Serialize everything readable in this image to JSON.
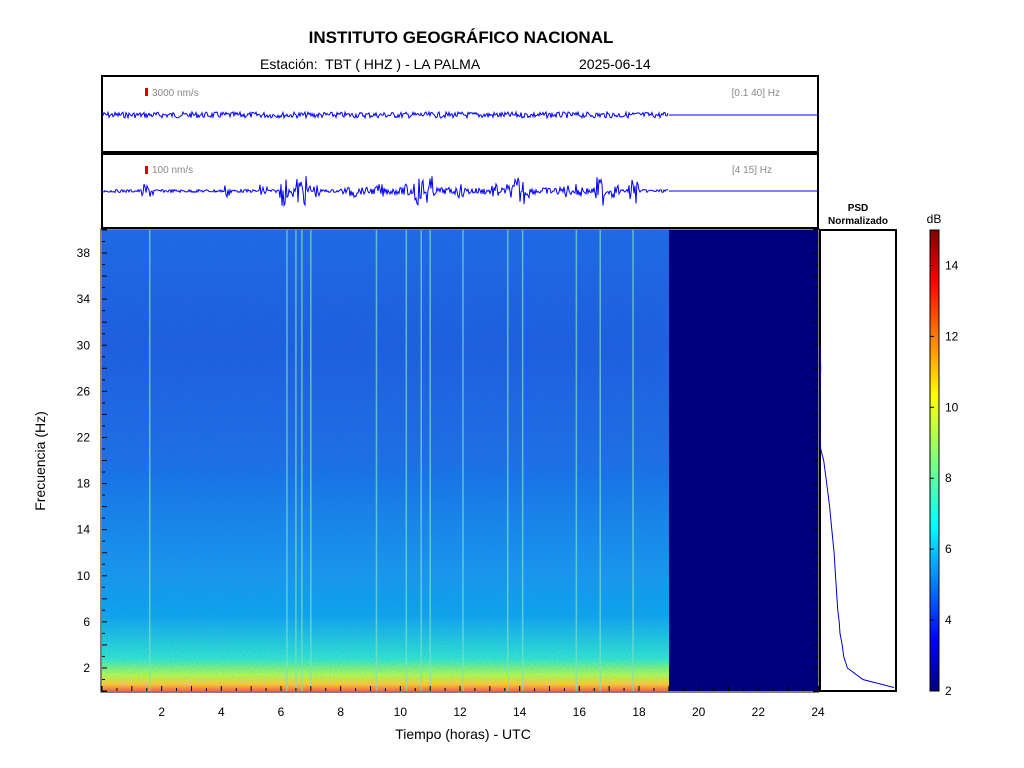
{
  "header": {
    "title": "INSTITUTO GEOGRÁFICO NACIONAL",
    "station_line": "Estación:  TBT ( HHZ ) - LA PALMA",
    "date": "2025-06-14"
  },
  "colors": {
    "trace": "#0000ff",
    "scale_bar": "#dd0000",
    "empty_region": "#00007f"
  },
  "chart_data": [
    {
      "type": "line",
      "panel": "seismogram-broadband",
      "scale_label": "3000 nm/s",
      "band_label": "[0.1 40] Hz",
      "x_range_hours": [
        0,
        24
      ],
      "data_end_hour": 19.0,
      "amplitude_relative": 0.07
    },
    {
      "type": "line",
      "panel": "seismogram-filtered",
      "scale_label": "100 nm/s",
      "band_label": "[4 15] Hz",
      "x_range_hours": [
        0,
        24
      ],
      "data_end_hour": 19.0,
      "events_hours": [
        1.45,
        1.6,
        4.2,
        5.4,
        6.1,
        6.5,
        6.7,
        6.9,
        7.2,
        8.4,
        9.3,
        10.2,
        10.6,
        10.8,
        11.0,
        12.0,
        13.2,
        13.7,
        14.0,
        14.2,
        15.5,
        16.0,
        16.7,
        17.2,
        17.8
      ],
      "large_events_hours": [
        6.1,
        6.7,
        10.6,
        10.9,
        14.0,
        16.7,
        17.8
      ]
    },
    {
      "type": "heatmap",
      "panel": "spectrogram",
      "xlabel": "Tiempo (horas) - UTC",
      "ylabel": "Frecuencia  (Hz)",
      "xlim": [
        0,
        24
      ],
      "ylim": [
        0,
        40
      ],
      "xticks": [
        2,
        4,
        6,
        8,
        10,
        12,
        14,
        16,
        18,
        20,
        22,
        24
      ],
      "yticks": [
        2,
        6,
        10,
        14,
        18,
        22,
        26,
        30,
        34,
        38
      ],
      "data_end_hour": 19.0,
      "vertical_lines_hours": [
        1.6,
        6.2,
        6.5,
        6.7,
        7.0,
        9.2,
        10.2,
        10.7,
        11.0,
        12.1,
        13.6,
        14.1,
        15.9,
        16.7,
        17.8
      ]
    },
    {
      "type": "line",
      "panel": "psd",
      "title": "PSD\nNormalizado",
      "title_lines": [
        "PSD",
        "Normalizado"
      ],
      "ylim": [
        0,
        40
      ],
      "profile": [
        [
          0.3,
          1.0
        ],
        [
          1,
          0.58
        ],
        [
          2,
          0.37
        ],
        [
          3,
          0.32
        ],
        [
          4,
          0.3
        ],
        [
          5,
          0.27
        ],
        [
          6,
          0.26
        ],
        [
          7,
          0.24
        ],
        [
          8,
          0.23
        ],
        [
          9,
          0.22
        ],
        [
          10,
          0.21
        ],
        [
          12,
          0.19
        ],
        [
          14,
          0.16
        ],
        [
          16,
          0.13
        ],
        [
          18,
          0.09
        ],
        [
          20,
          0.05
        ],
        [
          21,
          0.01
        ],
        [
          22,
          0.0
        ],
        [
          26,
          0.0
        ],
        [
          28,
          0.01
        ],
        [
          30,
          0.0
        ]
      ]
    },
    {
      "type": "heatmap",
      "panel": "colorbar",
      "label": "dB",
      "range": [
        2,
        15
      ],
      "ticks": [
        2,
        4,
        6,
        8,
        10,
        12,
        14
      ]
    }
  ]
}
